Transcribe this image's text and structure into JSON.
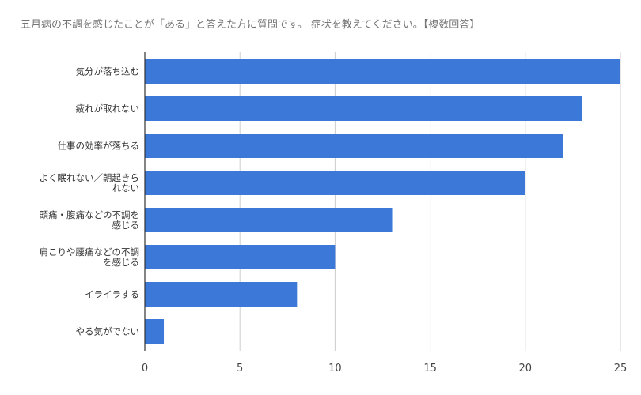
{
  "chart_data": {
    "type": "bar",
    "orientation": "horizontal",
    "title": "五月病の不調を感じたことが「ある」と答えた方に質問です。 症状を教えてください。【複数回答】",
    "xlabel": "",
    "ylabel": "",
    "categories": [
      "気分が落ち込む",
      "疲れが取れない",
      "仕事の効率が落ちる",
      "よく眠れない／朝起きられない",
      "頭痛・腹痛などの不調を感じる",
      "肩こりや腰痛などの不調を感じる",
      "イライラする",
      "やる気がでない"
    ],
    "category_lines": [
      [
        "気分が落ち込む"
      ],
      [
        "疲れが取れない"
      ],
      [
        "仕事の効率が落ちる"
      ],
      [
        "よく眠れない／朝起きら",
        "れない"
      ],
      [
        "頭痛・腹痛などの不調を",
        "感じる"
      ],
      [
        "肩こりや腰痛などの不調",
        "を感じる"
      ],
      [
        "イライラする"
      ],
      [
        "やる気がでない"
      ]
    ],
    "values": [
      25,
      23,
      22,
      20,
      13,
      10,
      8,
      1
    ],
    "xlim": [
      0,
      25
    ],
    "xticks": [
      0,
      5,
      10,
      15,
      20,
      25
    ],
    "grid": "vertical",
    "legend": "none",
    "bar_color": "#3c78d8",
    "grid_color": "#cccccc",
    "axis_color": "#333333"
  }
}
